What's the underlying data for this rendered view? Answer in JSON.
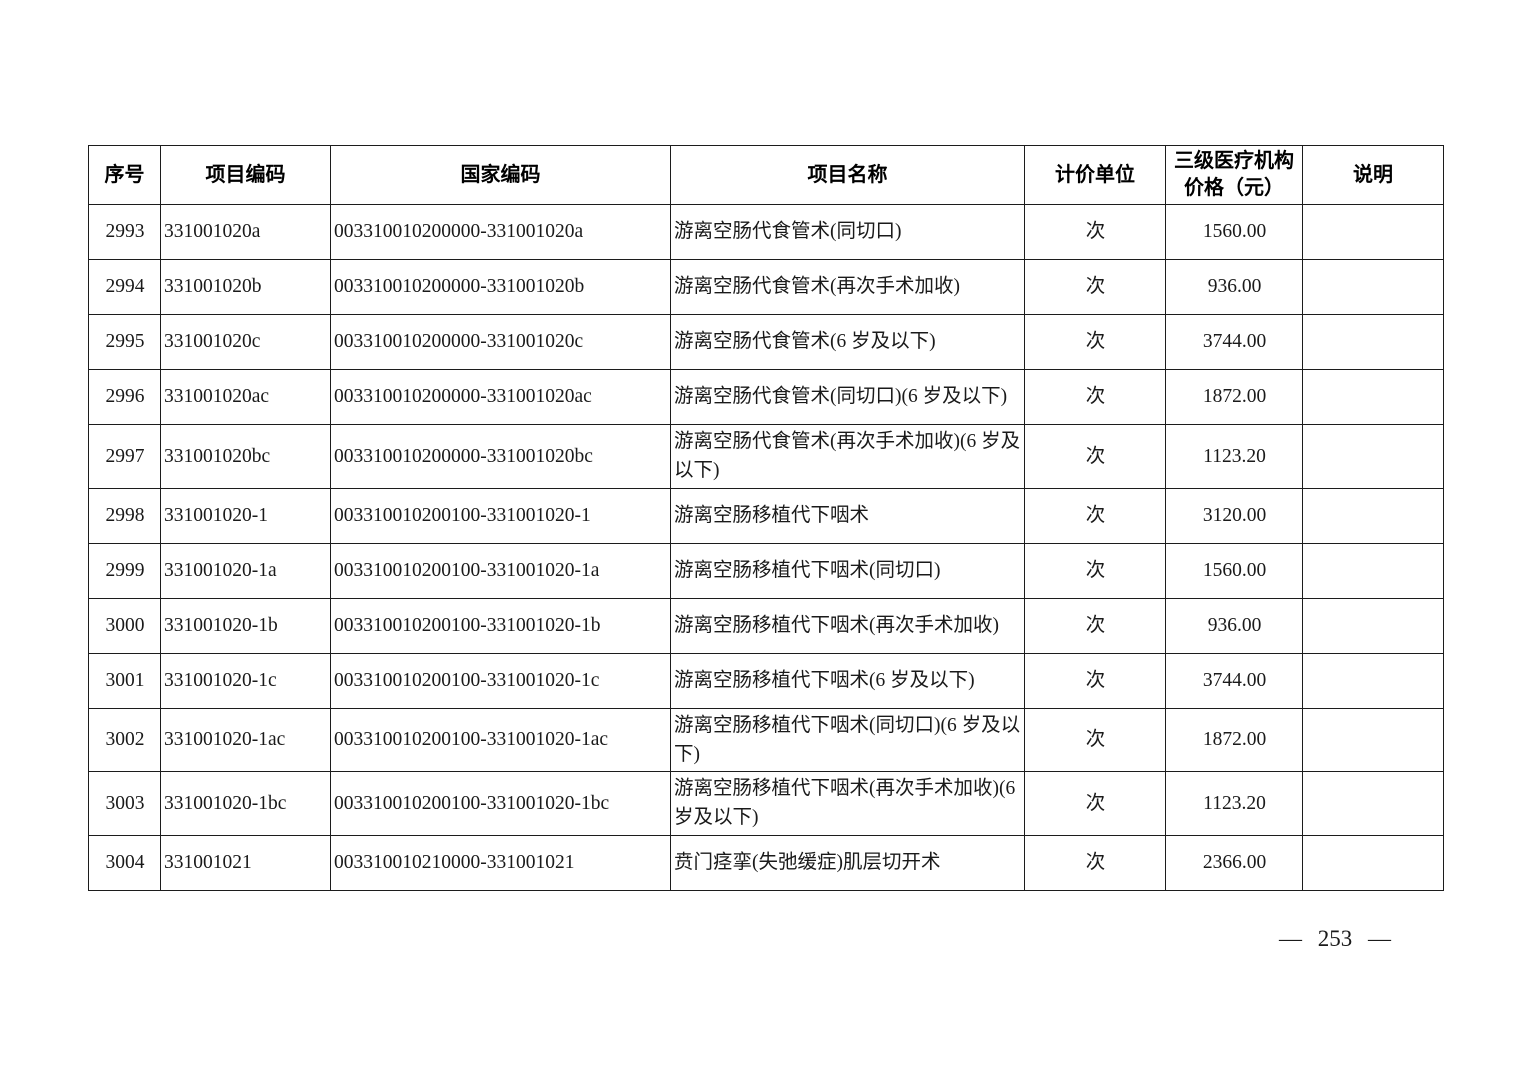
{
  "page": {
    "number_label": "— 253 —"
  },
  "table": {
    "headers": [
      "序号",
      "项目编码",
      "国家编码",
      "项目名称",
      "计价单位",
      "三级医疗机构价格（元）",
      "说明"
    ],
    "rows": [
      {
        "no": "2993",
        "code": "331001020a",
        "national_code": "003310010200000-331001020a",
        "name": "游离空肠代食管术(同切口)",
        "unit": "次",
        "price": "1560.00",
        "note": ""
      },
      {
        "no": "2994",
        "code": "331001020b",
        "national_code": "003310010200000-331001020b",
        "name": "游离空肠代食管术(再次手术加收)",
        "unit": "次",
        "price": "936.00",
        "note": ""
      },
      {
        "no": "2995",
        "code": "331001020c",
        "national_code": "003310010200000-331001020c",
        "name": "游离空肠代食管术(6 岁及以下)",
        "unit": "次",
        "price": "3744.00",
        "note": ""
      },
      {
        "no": "2996",
        "code": "331001020ac",
        "national_code": "003310010200000-331001020ac",
        "name": "游离空肠代食管术(同切口)(6 岁及以下)",
        "unit": "次",
        "price": "1872.00",
        "note": ""
      },
      {
        "no": "2997",
        "code": "331001020bc",
        "national_code": "003310010200000-331001020bc",
        "name": "游离空肠代食管术(再次手术加收)(6 岁及以下)",
        "unit": "次",
        "price": "1123.20",
        "note": ""
      },
      {
        "no": "2998",
        "code": "331001020-1",
        "national_code": "003310010200100-331001020-1",
        "name": "游离空肠移植代下咽术",
        "unit": "次",
        "price": "3120.00",
        "note": ""
      },
      {
        "no": "2999",
        "code": "331001020-1a",
        "national_code": "003310010200100-331001020-1a",
        "name": "游离空肠移植代下咽术(同切口)",
        "unit": "次",
        "price": "1560.00",
        "note": ""
      },
      {
        "no": "3000",
        "code": "331001020-1b",
        "national_code": "003310010200100-331001020-1b",
        "name": "游离空肠移植代下咽术(再次手术加收)",
        "unit": "次",
        "price": "936.00",
        "note": ""
      },
      {
        "no": "3001",
        "code": "331001020-1c",
        "national_code": "003310010200100-331001020-1c",
        "name": "游离空肠移植代下咽术(6 岁及以下)",
        "unit": "次",
        "price": "3744.00",
        "note": ""
      },
      {
        "no": "3002",
        "code": "331001020-1ac",
        "national_code": "003310010200100-331001020-1ac",
        "name": "游离空肠移植代下咽术(同切口)(6 岁及以下)",
        "unit": "次",
        "price": "1872.00",
        "note": ""
      },
      {
        "no": "3003",
        "code": "331001020-1bc",
        "national_code": "003310010200100-331001020-1bc",
        "name": "游离空肠移植代下咽术(再次手术加收)(6 岁及以下)",
        "unit": "次",
        "price": "1123.20",
        "note": ""
      },
      {
        "no": "3004",
        "code": "331001021",
        "national_code": "003310010210000-331001021",
        "name": "贲门痉挛(失弛缓症)肌层切开术",
        "unit": "次",
        "price": "2366.00",
        "note": ""
      }
    ]
  }
}
